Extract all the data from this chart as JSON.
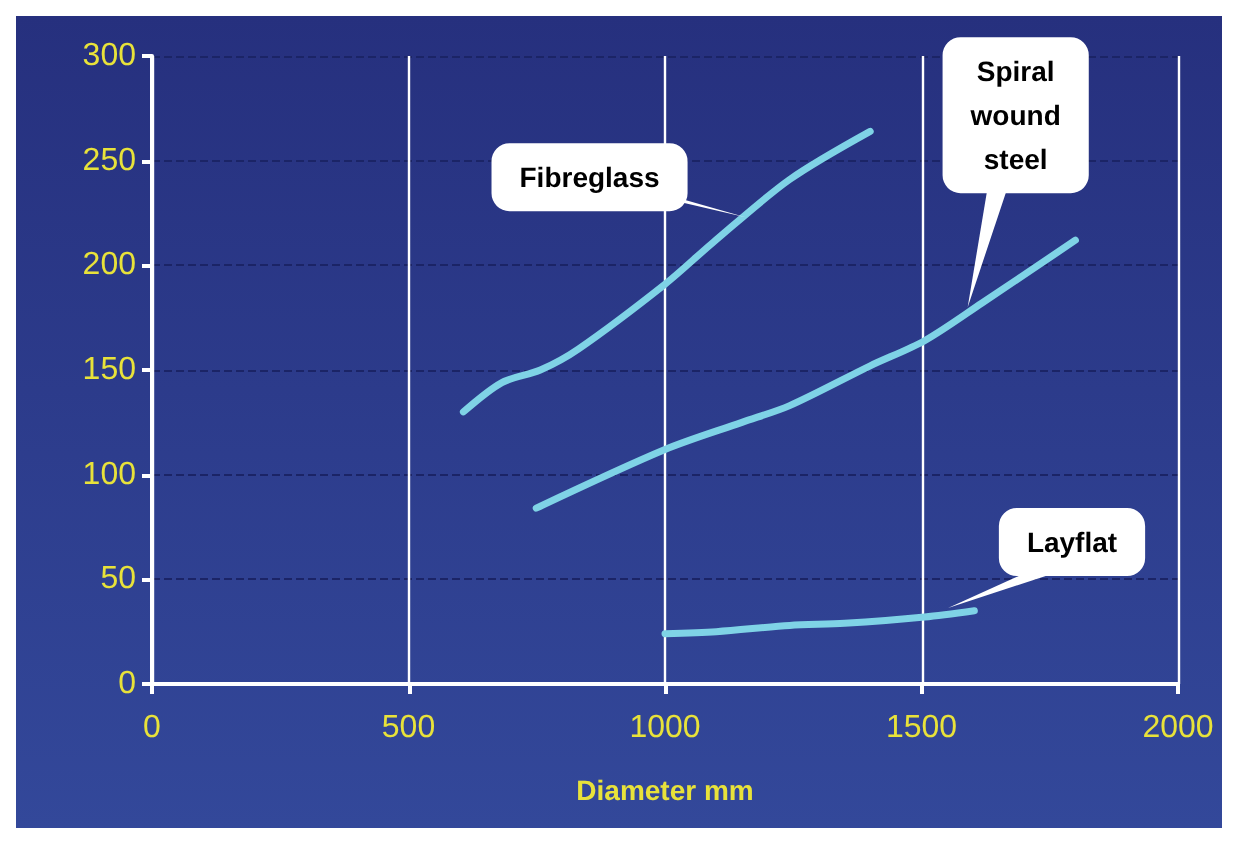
{
  "chart_data": {
    "type": "line",
    "xlabel": "Diameter mm",
    "xlim": [
      0,
      2000
    ],
    "xticks": [
      0,
      500,
      1000,
      1500,
      2000
    ],
    "ylim": [
      0,
      300
    ],
    "yticks": [
      0,
      50,
      100,
      150,
      200,
      250,
      300
    ],
    "grid": true,
    "marker": "none",
    "line_style": "solid",
    "series": [
      {
        "color": "#7fd3e6",
        "x": [
          607,
          682,
          757,
          831,
          1000,
          1094,
          1243,
          1400
        ],
        "values": [
          130,
          144,
          150,
          160,
          191,
          211,
          241,
          264
        ]
      },
      {
        "color": "#7fd3e6",
        "x": [
          749,
          1000,
          1150,
          1243,
          1400,
          1506,
          1618,
          1800
        ],
        "values": [
          84,
          112,
          125,
          133,
          152,
          164,
          182,
          212
        ]
      },
      {
        "color": "#7fd3e6",
        "x": [
          1000,
          1100,
          1243,
          1350,
          1506,
          1603
        ],
        "values": [
          24,
          25,
          28,
          29,
          32,
          35
        ]
      }
    ],
    "annotations": [
      {
        "text": "Fibreglass",
        "x": 1157,
        "y": 223
      },
      {
        "text": "Spiral\nwound\nsteel",
        "x": 1590,
        "y": 180
      },
      "Layflat"
    ]
  }
}
